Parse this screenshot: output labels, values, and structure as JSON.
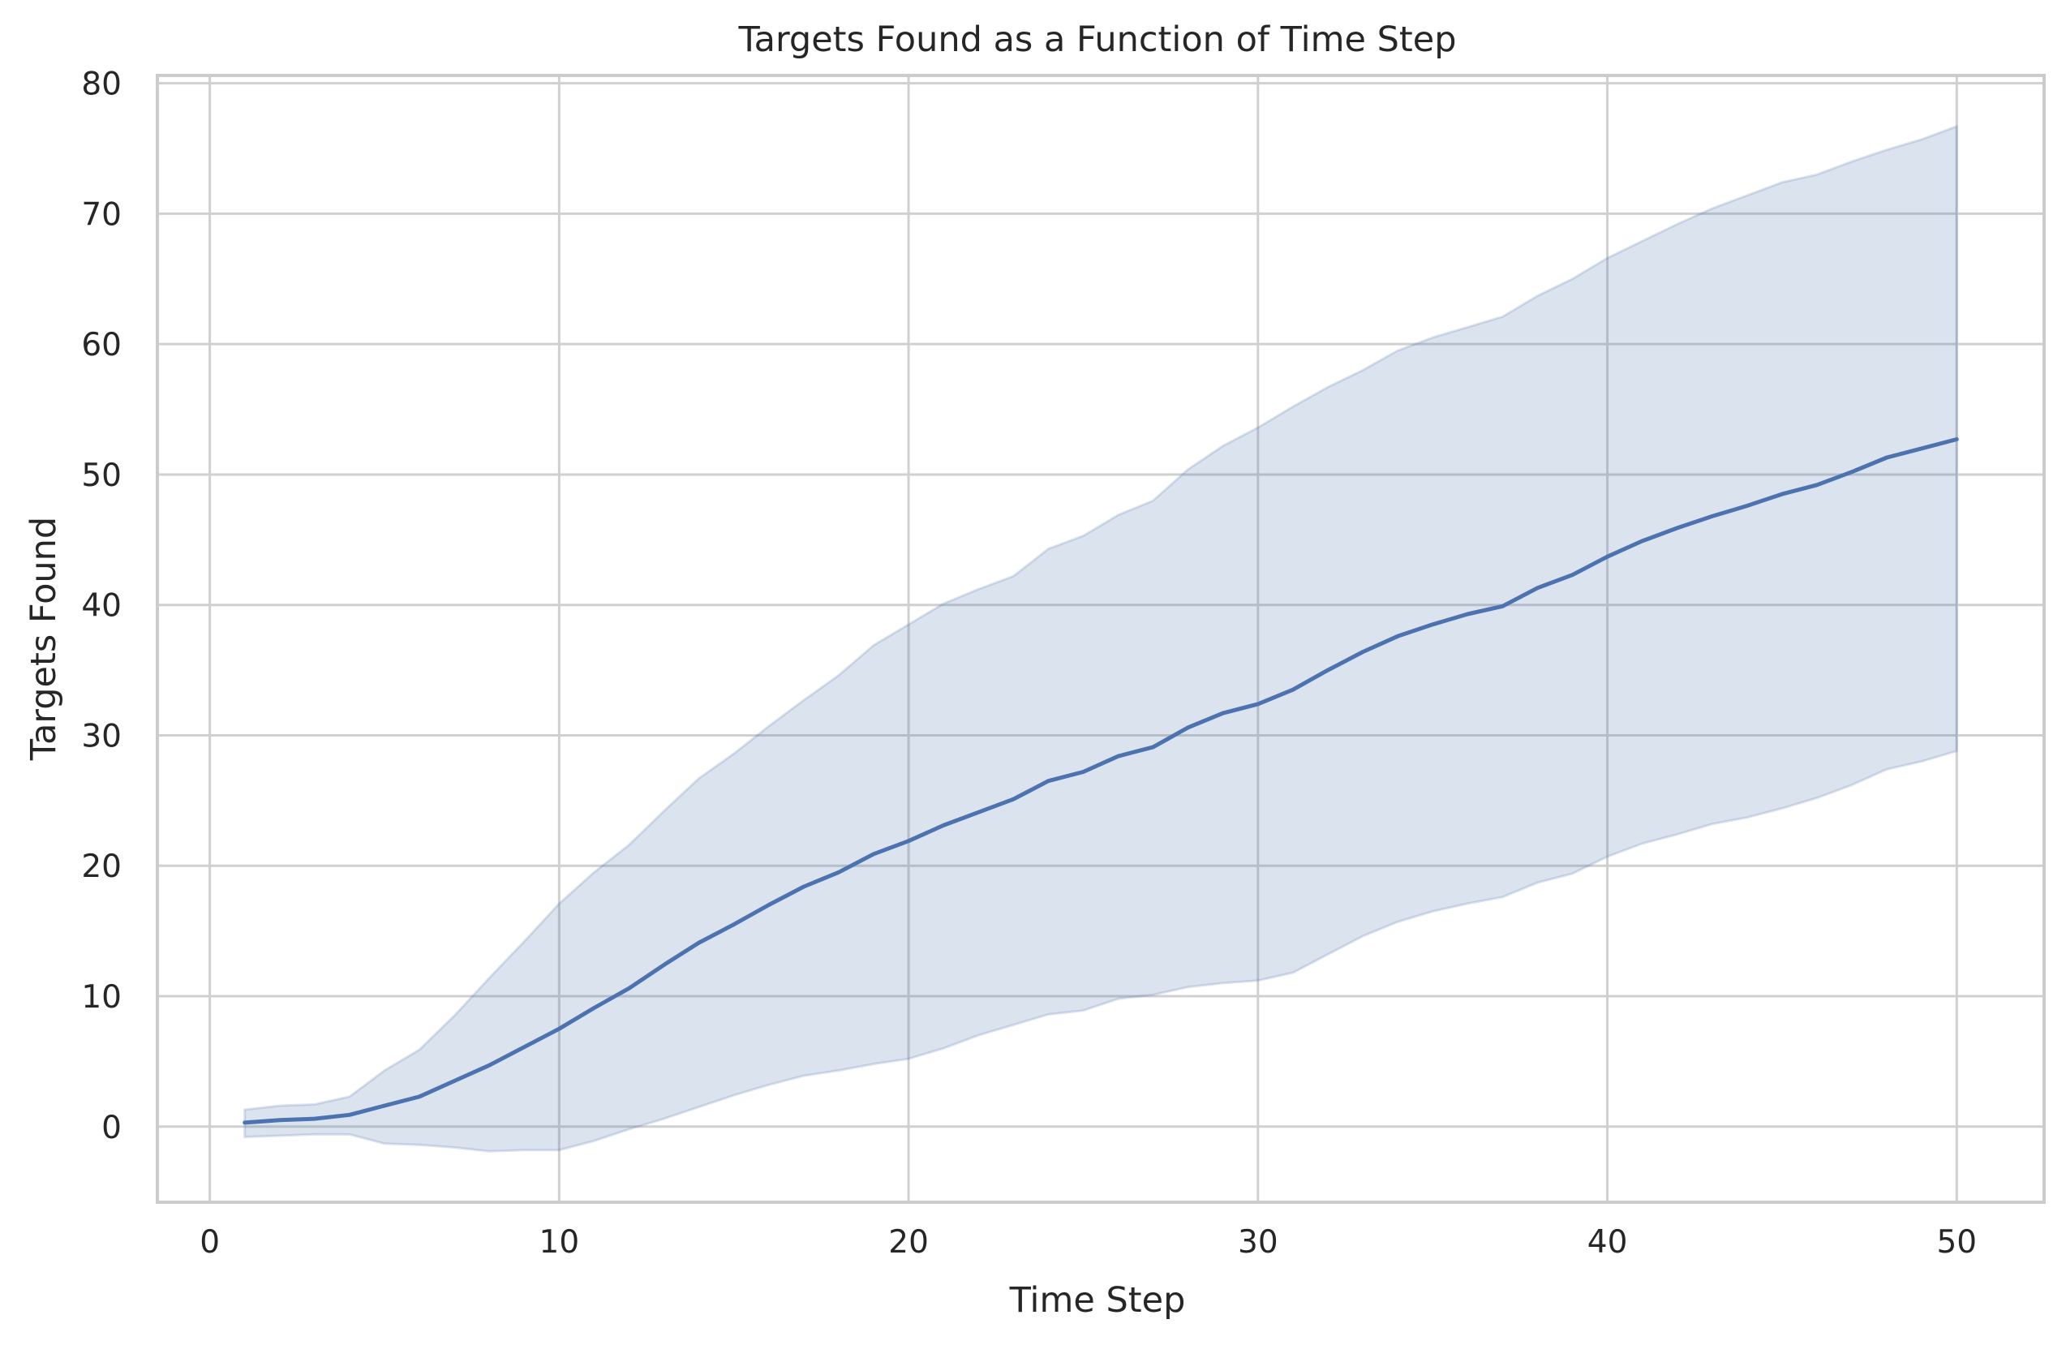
{
  "chart_data": {
    "type": "line",
    "title": "Targets Found as a Function of Time Step",
    "xlabel": "Time Step",
    "ylabel": "Targets Found",
    "xlim": [
      -1.5,
      52.5
    ],
    "ylim": [
      -5.8,
      80.6
    ],
    "xticks": [
      0,
      10,
      20,
      30,
      40,
      50
    ],
    "yticks": [
      0,
      10,
      20,
      30,
      40,
      50,
      60,
      70,
      80
    ],
    "grid": true,
    "colors": {
      "line": "#4c72b0",
      "band": "#4c72b0",
      "grid": "#d0d0d0",
      "spine": "#cccccc"
    },
    "series": [
      {
        "x": [
          1,
          2,
          3,
          4,
          5,
          6,
          7,
          8,
          9,
          10,
          11,
          12,
          13,
          14,
          15,
          16,
          17,
          18,
          19,
          20,
          21,
          22,
          23,
          24,
          25,
          26,
          27,
          28,
          29,
          30,
          31,
          32,
          33,
          34,
          35,
          36,
          37,
          38,
          39,
          40,
          41,
          42,
          43,
          44,
          45,
          46,
          47,
          48,
          49,
          50
        ],
        "y": [
          0.3,
          0.5,
          0.6,
          0.9,
          1.6,
          2.3,
          3.5,
          4.7,
          6.1,
          7.5,
          9.1,
          10.6,
          12.4,
          14.1,
          15.5,
          17.0,
          18.4,
          19.5,
          20.9,
          21.9,
          23.1,
          24.1,
          25.1,
          26.5,
          27.2,
          28.4,
          29.1,
          30.6,
          31.7,
          32.4,
          33.5,
          35.0,
          36.4,
          37.6,
          38.5,
          39.3,
          39.9,
          41.3,
          42.3,
          43.7,
          44.9,
          45.9,
          46.8,
          47.6,
          48.5,
          49.2,
          50.2,
          51.3,
          52.0,
          52.7
        ],
        "lower": [
          -0.8,
          -0.7,
          -0.6,
          -0.6,
          -1.3,
          -1.4,
          -1.6,
          -1.9,
          -1.8,
          -1.8,
          -1.1,
          -0.2,
          0.6,
          1.5,
          2.4,
          3.2,
          3.9,
          4.3,
          4.8,
          5.2,
          6.0,
          7.0,
          7.8,
          8.6,
          8.9,
          9.8,
          10.1,
          10.7,
          11.0,
          11.2,
          11.8,
          13.2,
          14.6,
          15.7,
          16.5,
          17.1,
          17.6,
          18.7,
          19.4,
          20.7,
          21.7,
          22.4,
          23.2,
          23.7,
          24.4,
          25.2,
          26.2,
          27.4,
          28.0,
          28.8
        ],
        "upper": [
          1.3,
          1.6,
          1.7,
          2.3,
          4.3,
          5.9,
          8.5,
          11.4,
          14.2,
          17.1,
          19.5,
          21.6,
          24.2,
          26.7,
          28.6,
          30.7,
          32.7,
          34.6,
          36.9,
          38.5,
          40.1,
          41.2,
          42.2,
          44.3,
          45.3,
          46.9,
          48.0,
          50.4,
          52.2,
          53.6,
          55.2,
          56.7,
          58.0,
          59.5,
          60.5,
          61.3,
          62.1,
          63.7,
          65.0,
          66.6,
          67.9,
          69.2,
          70.4,
          71.4,
          72.4,
          73.0,
          74.0,
          74.9,
          75.7,
          76.7
        ]
      }
    ]
  }
}
